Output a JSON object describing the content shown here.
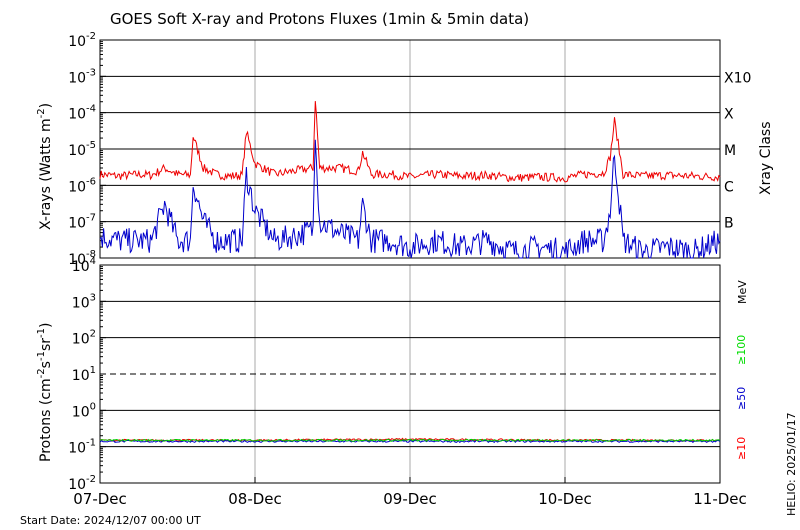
{
  "title": "GOES Soft X-ray and Protons Fluxes  (1min & 5min data)",
  "start_date": "Start Date: 2024/12/07 00:00 UT",
  "footer_right": "HELIO: 2025/01/17",
  "xaxis": {
    "ticks": [
      "07-Dec",
      "08-Dec",
      "09-Dec",
      "10-Dec",
      "11-Dec"
    ]
  },
  "xray_panel": {
    "ylabel": "X-rays (Watts m",
    "ylabel_sup": "-2",
    "ylabel_tail": ")",
    "right_label": "Xray Class",
    "classes": [
      {
        "label": "X10",
        "exp": -3
      },
      {
        "label": "X",
        "exp": -4
      },
      {
        "label": "M",
        "exp": -5
      },
      {
        "label": "C",
        "exp": -6
      },
      {
        "label": "B",
        "exp": -7
      }
    ],
    "yticks": [
      {
        "base": "10",
        "exp": "-2"
      },
      {
        "base": "10",
        "exp": "-3"
      },
      {
        "base": "10",
        "exp": "-4"
      },
      {
        "base": "10",
        "exp": "-5"
      },
      {
        "base": "10",
        "exp": "-6"
      },
      {
        "base": "10",
        "exp": "-7"
      },
      {
        "base": "10",
        "exp": "-8"
      }
    ]
  },
  "proton_panel": {
    "ylabel": "Protons (cm",
    "ylabel_sup1": "-2",
    "ylabel_mid1": "s",
    "ylabel_sup2": "-1",
    "ylabel_mid2": "sr",
    "ylabel_sup3": "-1",
    "ylabel_tail": ")",
    "yticks": [
      {
        "base": "10",
        "exp": "4"
      },
      {
        "base": "10",
        "exp": "3"
      },
      {
        "base": "10",
        "exp": "2"
      },
      {
        "base": "10",
        "exp": "1"
      },
      {
        "base": "10",
        "exp": "0"
      },
      {
        "base": "10",
        "exp": "-1"
      },
      {
        "base": "10",
        "exp": "-2"
      }
    ],
    "energy_unit": "MeV",
    "energy_labels": [
      {
        "label": "≥100",
        "color": "#00dd00"
      },
      {
        "label": "≥50",
        "color": "#0000cc"
      },
      {
        "label": "≥10",
        "color": "#ff0000"
      }
    ]
  },
  "colors": {
    "long_channel": "#ee0000",
    "short_channel": "#0000cc",
    "p10": "#ee0000",
    "p50": "#0000cc",
    "p100": "#00cc00"
  },
  "chart_data": [
    {
      "type": "line",
      "title": "GOES Soft X-ray and Protons Fluxes  (1min & 5min data)",
      "ylabel": "X-rays (Watts m-2)",
      "yscale": "log",
      "ylim": [
        1e-08,
        0.01
      ],
      "xlim": [
        "2024-12-07",
        "2024-12-11"
      ],
      "grid": true,
      "series": [
        {
          "color": "#ee0000",
          "x": [
            "2024-12-07T00:00",
            "2024-12-07T03:00",
            "2024-12-07T06:00",
            "2024-12-07T08:00",
            "2024-12-07T10:00",
            "2024-12-07T12:00",
            "2024-12-07T14:00",
            "2024-12-07T14:25",
            "2024-12-07T16:00",
            "2024-12-07T18:00",
            "2024-12-07T20:00",
            "2024-12-07T22:00",
            "2024-12-07T22:40",
            "2024-12-08T00:00",
            "2024-12-08T03:00",
            "2024-12-08T06:00",
            "2024-12-08T09:00",
            "2024-12-08T09:20",
            "2024-12-08T10:00",
            "2024-12-08T13:00",
            "2024-12-08T16:00",
            "2024-12-08T16:40",
            "2024-12-08T18:00",
            "2024-12-08T21:00",
            "2024-12-09T00:00",
            "2024-12-09T04:00",
            "2024-12-09T08:00",
            "2024-12-09T12:00",
            "2024-12-09T16:00",
            "2024-12-09T20:00",
            "2024-12-10T00:00",
            "2024-12-10T03:00",
            "2024-12-10T06:00",
            "2024-12-10T07:00",
            "2024-12-10T07:40",
            "2024-12-10T09:00",
            "2024-12-10T12:00",
            "2024-12-10T16:00",
            "2024-12-10T20:00",
            "2024-12-11T00:00"
          ],
          "values": [
            2e-06,
            1.8e-06,
            2e-06,
            1.9e-06,
            3e-06,
            2e-06,
            1.9e-06,
            2.3e-05,
            3e-06,
            2e-06,
            1.8e-06,
            1.9e-06,
            3e-05,
            4e-06,
            2e-06,
            2.5e-06,
            3e-06,
            0.00025,
            3e-06,
            3e-06,
            2.5e-06,
            8e-06,
            2e-06,
            2e-06,
            1.7e-06,
            2e-06,
            1.8e-06,
            1.9e-06,
            1.6e-06,
            1.7e-06,
            1.6e-06,
            2e-06,
            2.2e-06,
            6e-06,
            6e-05,
            2e-06,
            1.8e-06,
            1.9e-06,
            1.8e-06,
            1.7e-06
          ]
        },
        {
          "color": "#0000cc",
          "x": [
            "2024-12-07T00:00",
            "2024-12-07T03:00",
            "2024-12-07T06:00",
            "2024-12-07T08:00",
            "2024-12-07T10:00",
            "2024-12-07T12:00",
            "2024-12-07T14:00",
            "2024-12-07T14:25",
            "2024-12-07T16:00",
            "2024-12-07T18:00",
            "2024-12-07T20:00",
            "2024-12-07T22:00",
            "2024-12-07T22:40",
            "2024-12-08T00:00",
            "2024-12-08T03:00",
            "2024-12-08T06:00",
            "2024-12-08T09:00",
            "2024-12-08T09:20",
            "2024-12-08T10:00",
            "2024-12-08T13:00",
            "2024-12-08T16:00",
            "2024-12-08T16:40",
            "2024-12-08T18:00",
            "2024-12-08T21:00",
            "2024-12-09T00:00",
            "2024-12-09T04:00",
            "2024-12-09T08:00",
            "2024-12-09T12:00",
            "2024-12-09T16:00",
            "2024-12-09T20:00",
            "2024-12-10T00:00",
            "2024-12-10T03:00",
            "2024-12-10T06:00",
            "2024-12-10T07:00",
            "2024-12-10T07:40",
            "2024-12-10T09:00",
            "2024-12-10T12:00",
            "2024-12-10T16:00",
            "2024-12-10T20:00",
            "2024-12-11T00:00"
          ],
          "values": [
            4e-08,
            3e-08,
            3e-08,
            3e-08,
            3e-07,
            3e-08,
            3e-08,
            1.2e-06,
            1e-07,
            3e-08,
            3e-08,
            3e-08,
            2e-06,
            2e-07,
            3e-08,
            4e-08,
            6e-08,
            4e-05,
            1e-07,
            5e-08,
            3e-08,
            3e-07,
            3e-08,
            3e-08,
            2e-08,
            3e-08,
            2e-08,
            3e-08,
            1.5e-08,
            2e-08,
            1.5e-08,
            3e-08,
            3e-08,
            2e-07,
            8e-06,
            3e-08,
            1.5e-08,
            2e-08,
            1.5e-08,
            3e-08
          ]
        }
      ]
    },
    {
      "type": "line",
      "ylabel": "Protons (cm-2s-1sr-1)",
      "yscale": "log",
      "ylim": [
        0.01,
        10000
      ],
      "xlim": [
        "2024-12-07",
        "2024-12-11"
      ],
      "threshold": 10,
      "series": [
        {
          "name": "≥10",
          "color": "#ee0000",
          "x": [
            "2024-12-07",
            "2024-12-08",
            "2024-12-09",
            "2024-12-10",
            "2024-12-11"
          ],
          "values": [
            0.15,
            0.15,
            0.16,
            0.15,
            0.15
          ]
        },
        {
          "name": "≥50",
          "color": "#0000cc",
          "x": [
            "2024-12-07",
            "2024-12-08",
            "2024-12-09",
            "2024-12-10",
            "2024-12-11"
          ],
          "values": [
            0.14,
            0.14,
            0.14,
            0.14,
            0.14
          ]
        },
        {
          "name": "≥100",
          "color": "#00cc00",
          "x": [
            "2024-12-07",
            "2024-12-08",
            "2024-12-09",
            "2024-12-10",
            "2024-12-11"
          ],
          "values": [
            0.15,
            0.15,
            0.15,
            0.15,
            0.15
          ]
        }
      ]
    }
  ]
}
